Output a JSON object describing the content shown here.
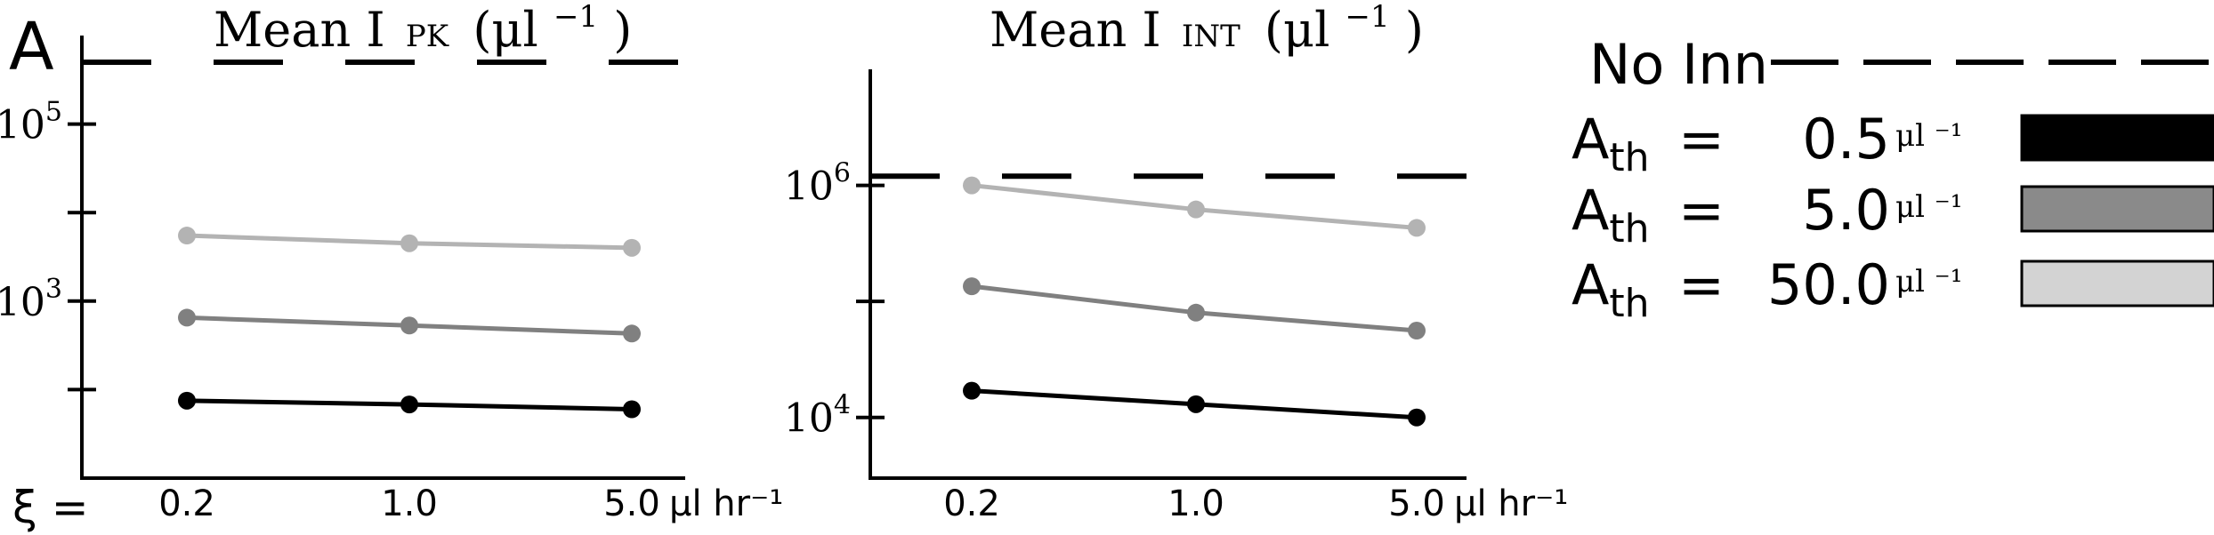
{
  "panel_label": "A",
  "xi_label": "ξ =",
  "legend": {
    "no_inn": "No Inn",
    "ath_label": "A",
    "ath_sub": "th",
    "equals": "=",
    "unit": "μl ⁻¹",
    "entries": [
      {
        "value": "0.5",
        "color": "#000000"
      },
      {
        "value": "5.0",
        "color": "#8a8a8a"
      },
      {
        "value": "50.0",
        "color": "#d3d3d3"
      }
    ]
  },
  "chart_data": [
    {
      "type": "line",
      "title": "Mean I PK (μl⁻¹)",
      "title_main": "Mean I",
      "title_sub": "PK",
      "title_unit": "(μl",
      "title_exp": "−1",
      "title_close": ")",
      "x_categories": [
        "0.2",
        "1.0",
        "5.0"
      ],
      "x_unit": "μl hr⁻¹",
      "y_scale": "log",
      "ylim": [
        10,
        1000000
      ],
      "y_tick_labels": [
        {
          "value": 100000,
          "base": "10",
          "exp": "5"
        },
        {
          "value": 1000,
          "base": "10",
          "exp": "3"
        }
      ],
      "y_minor_ticks": [
        10000,
        100
      ],
      "no_inn_level": 500000,
      "series": [
        {
          "ath": "50.0",
          "color": "#b3b3b3",
          "values": [
            5500,
            4500,
            4000
          ]
        },
        {
          "ath": "5.0",
          "color": "#808080",
          "values": [
            650,
            530,
            430
          ]
        },
        {
          "ath": "0.5",
          "color": "#000000",
          "values": [
            75,
            68,
            60
          ]
        }
      ]
    },
    {
      "type": "line",
      "title": "Mean I INT (μl⁻¹)",
      "title_main": "Mean I",
      "title_sub": "INT",
      "title_unit": "(μl",
      "title_exp": "−1",
      "title_close": ")",
      "x_categories": [
        "0.2",
        "1.0",
        "5.0"
      ],
      "x_unit": "μl hr⁻¹",
      "y_scale": "log",
      "ylim": [
        3000,
        10000000
      ],
      "y_tick_labels": [
        {
          "value": 1000000,
          "base": "10",
          "exp": "6"
        },
        {
          "value": 10000,
          "base": "10",
          "exp": "4"
        }
      ],
      "y_minor_ticks": [
        100000
      ],
      "no_inn_level": 1200000,
      "series": [
        {
          "ath": "50.0",
          "color": "#b3b3b3",
          "values": [
            1000000,
            620000,
            430000
          ]
        },
        {
          "ath": "5.0",
          "color": "#808080",
          "values": [
            135000,
            80000,
            56000
          ]
        },
        {
          "ath": "0.5",
          "color": "#000000",
          "values": [
            17000,
            13000,
            10000
          ]
        }
      ]
    }
  ]
}
